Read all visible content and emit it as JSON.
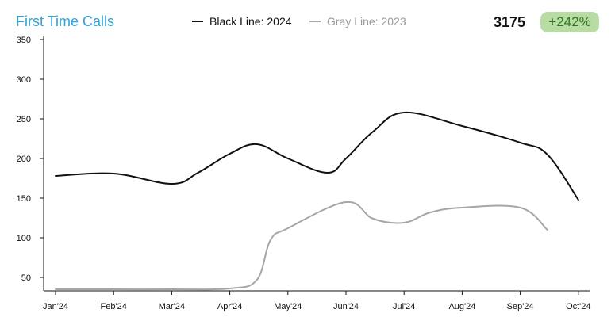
{
  "header": {
    "title": "First Time Calls",
    "total": "3175",
    "change": "+242%"
  },
  "colors": {
    "title": "#2fa3d6",
    "series_2024": "#111111",
    "series_2023": "#a6a6a6",
    "badge_bg": "#b9dca5",
    "badge_text": "#2f7a1f"
  },
  "chart_data": {
    "type": "line",
    "title": "First Time Calls",
    "xlabel": "",
    "ylabel": "",
    "x_ticks": [
      "Jan'24",
      "Feb'24",
      "Mar'24",
      "Apr'24",
      "May'24",
      "Jun'24",
      "Jul'24",
      "Aug'24",
      "Sep'24",
      "Oct'24"
    ],
    "y_ticks": [
      50,
      100,
      150,
      200,
      250,
      300,
      350
    ],
    "ylim": [
      33,
      355
    ],
    "xlim_months": [
      0,
      9.3
    ],
    "grid": false,
    "legend_position": "top",
    "series": [
      {
        "name": "Black Line: 2024",
        "color": "#111111",
        "x": [
          "2024-01-01",
          "2024-02-01",
          "2024-03-01",
          "2024-03-15",
          "2024-04-01",
          "2024-04-15",
          "2024-05-01",
          "2024-05-22",
          "2024-06-01",
          "2024-06-15",
          "2024-07-01",
          "2024-08-01",
          "2024-09-01",
          "2024-09-15",
          "2024-10-01"
        ],
        "values": [
          178,
          181,
          168,
          182,
          206,
          218,
          200,
          182,
          200,
          234,
          258,
          241,
          220,
          205,
          148
        ]
      },
      {
        "name": "Gray Line: 2023",
        "color": "#a6a6a6",
        "x": [
          "2024-01-01",
          "2024-02-01",
          "2024-03-01",
          "2024-04-01",
          "2024-04-15",
          "2024-04-22",
          "2024-05-01",
          "2024-06-01",
          "2024-06-15",
          "2024-07-01",
          "2024-07-15",
          "2024-08-01",
          "2024-09-01",
          "2024-09-15"
        ],
        "values": [
          35,
          35,
          35,
          36,
          47,
          97,
          112,
          145,
          124,
          119,
          132,
          138,
          138,
          110
        ]
      }
    ]
  }
}
